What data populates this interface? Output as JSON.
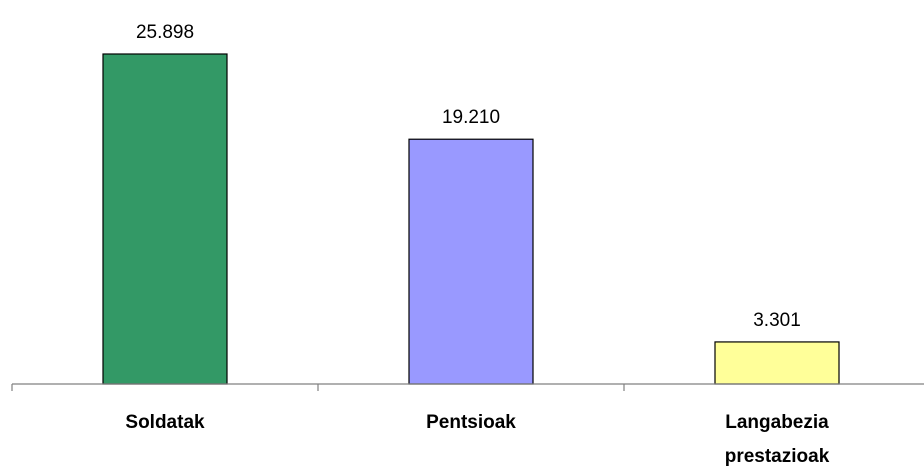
{
  "chart_data": {
    "type": "bar",
    "categories": [
      "Soldatak",
      "Pentsioak",
      "Langabezia prestazioak"
    ],
    "category_lines": [
      [
        "Soldatak"
      ],
      [
        "Pentsioak"
      ],
      [
        "Langabezia",
        "prestazioak"
      ]
    ],
    "values": [
      25898,
      19210,
      3301
    ],
    "value_labels": [
      "25.898",
      "19.210",
      "3.301"
    ],
    "bar_colors": [
      "#339966",
      "#9999ff",
      "#ffff99"
    ],
    "title": "",
    "xlabel": "",
    "ylabel": "",
    "ylim": [
      0,
      30000
    ],
    "grid": false,
    "legend": "none"
  }
}
